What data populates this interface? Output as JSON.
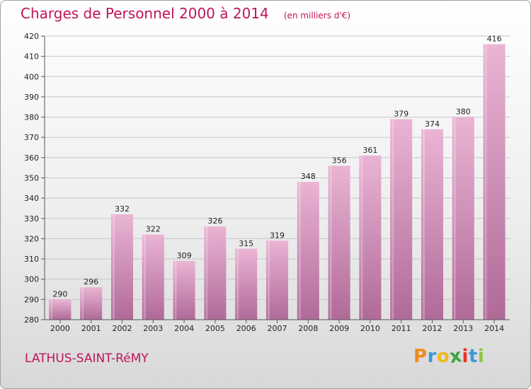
{
  "header": {
    "title": "Charges de Personnel 2000 à 2014",
    "subtitle": "(en milliers d'€)"
  },
  "commune": "LATHUS-SAINT-RéMY",
  "logo": {
    "letters": [
      "P",
      "r",
      "o",
      "x",
      "i",
      "t",
      "i"
    ],
    "colors": [
      "#f08a1c",
      "#3a9ad9",
      "#f0b81c",
      "#3aa641",
      "#e8342a",
      "#3a9ad9",
      "#8bc63e"
    ]
  },
  "colors": {
    "title": "#c0145a",
    "bar_light": "#eab4d4",
    "bar_dark": "#b06a98",
    "grid": "#c8c8c8"
  },
  "chart_data": {
    "type": "bar",
    "title": "Charges de Personnel 2000 à 2014",
    "subtitle": "(en milliers d'€)",
    "categories": [
      "2000",
      "2001",
      "2002",
      "2003",
      "2004",
      "2005",
      "2006",
      "2007",
      "2008",
      "2009",
      "2010",
      "2011",
      "2012",
      "2013",
      "2014"
    ],
    "values": [
      290,
      296,
      332,
      322,
      309,
      326,
      315,
      319,
      348,
      356,
      361,
      379,
      374,
      380,
      416
    ],
    "ylim": [
      280,
      420
    ],
    "yticks": [
      280,
      290,
      300,
      310,
      320,
      330,
      340,
      350,
      360,
      370,
      380,
      390,
      400,
      410,
      420
    ],
    "grid": true,
    "data_labels": true
  }
}
